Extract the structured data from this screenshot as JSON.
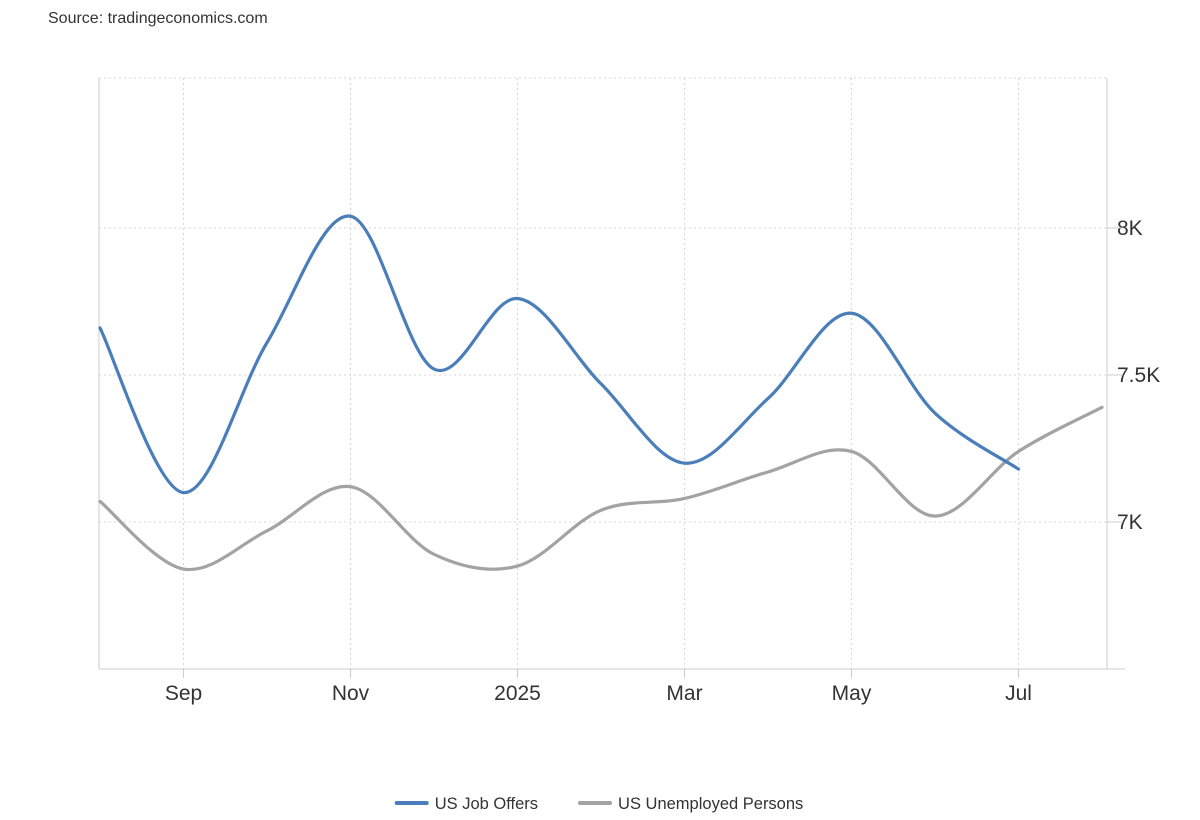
{
  "source": "Source: tradingeconomics.com",
  "chart_data": {
    "type": "line",
    "x_labels": [
      "Sep",
      "Nov",
      "2025",
      "Mar",
      "May",
      "Jul"
    ],
    "x_label_dates": [
      "2024-09",
      "2024-11",
      "2025-01",
      "2025-03",
      "2025-05",
      "2025-07"
    ],
    "y_ticks": [
      {
        "value": 7000,
        "label": "7K"
      },
      {
        "value": 7500,
        "label": "7.5K"
      },
      {
        "value": 8000,
        "label": "8K"
      }
    ],
    "ylim": [
      6500,
      8510
    ],
    "grid": true,
    "legend_position": "bottom",
    "x": [
      "2024-08",
      "2024-09",
      "2024-10",
      "2024-11",
      "2024-12",
      "2025-01",
      "2025-02",
      "2025-03",
      "2025-04",
      "2025-05",
      "2025-06",
      "2025-07",
      "2025-08"
    ],
    "series": [
      {
        "name": "US Job Offers",
        "color": "#4a7ebb",
        "values": [
          7660,
          7100,
          7610,
          8040,
          7520,
          7760,
          7470,
          7200,
          7420,
          7710,
          7370,
          7180,
          null
        ]
      },
      {
        "name": "US Unemployed Persons",
        "color": "#a3a3a3",
        "values": [
          7070,
          6840,
          6970,
          7120,
          6890,
          6850,
          7040,
          7080,
          7170,
          7240,
          7020,
          7240,
          7390
        ]
      }
    ]
  }
}
